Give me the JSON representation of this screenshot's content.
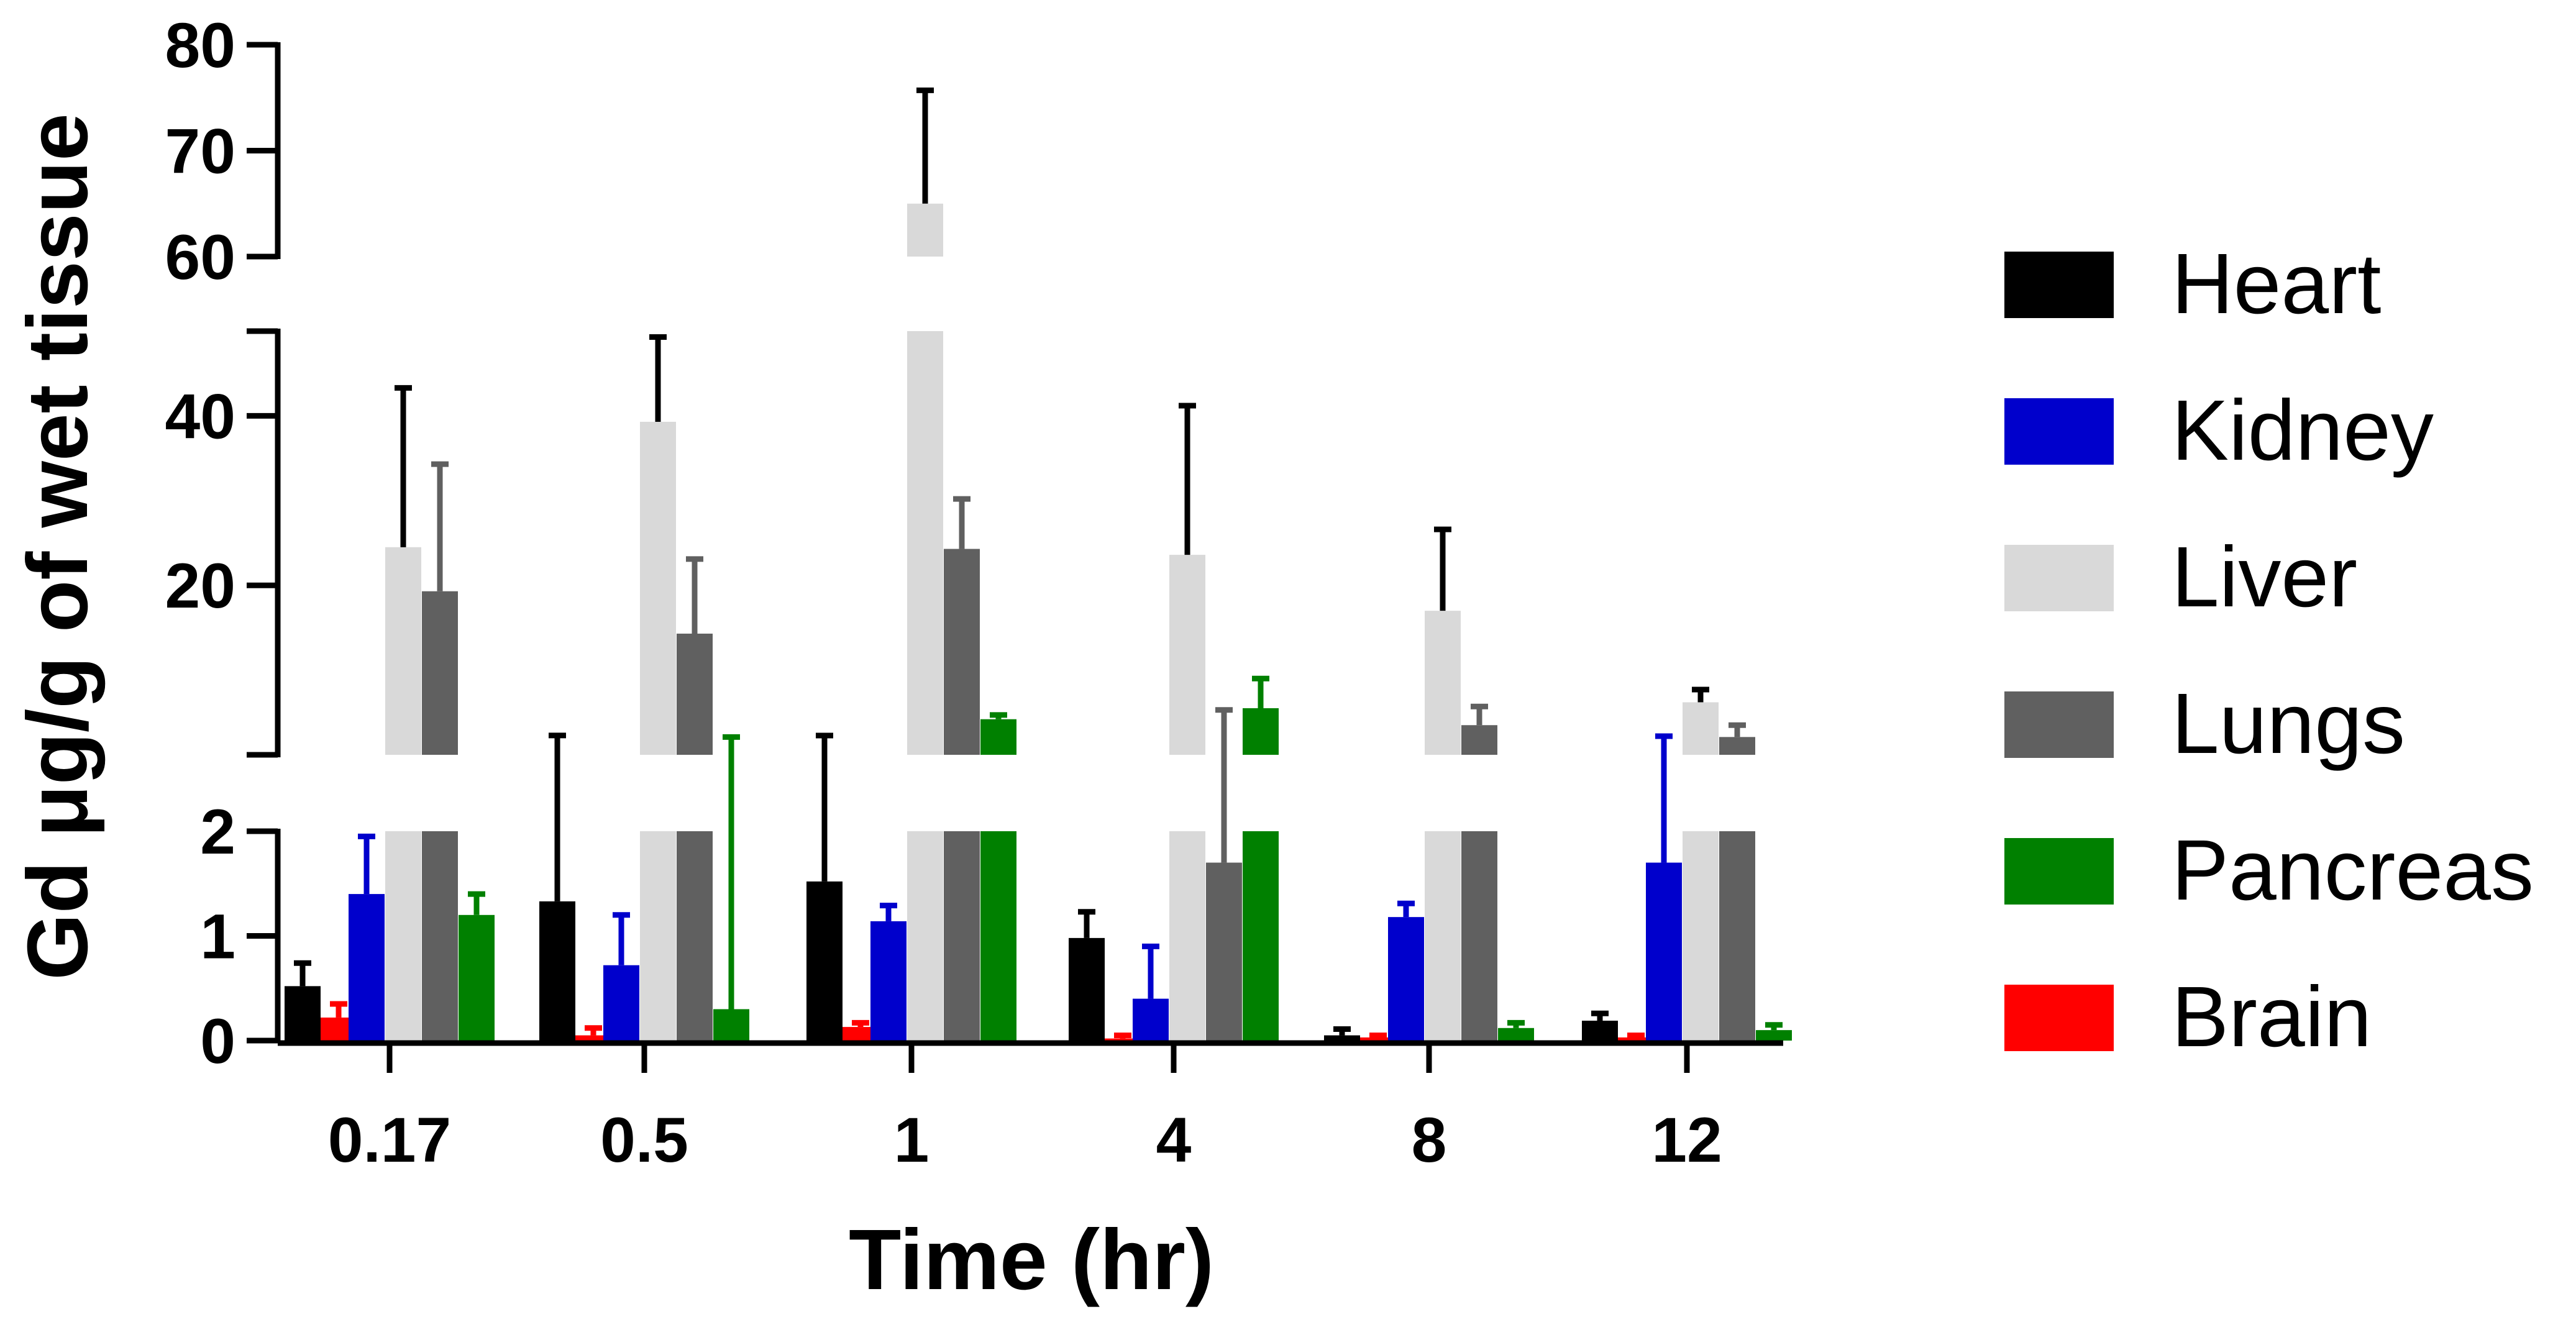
{
  "chart_data": {
    "type": "bar",
    "title": "",
    "xlabel": "Time (hr)",
    "ylabel": "Gd μg/g of wet tissue",
    "categories": [
      "0.17",
      "0.5",
      "1",
      "4",
      "8",
      "12"
    ],
    "y_axis_segments": [
      {
        "range": [
          0,
          2
        ],
        "ticks": [
          "0",
          "1",
          "2"
        ]
      },
      {
        "range": [
          0,
          50
        ],
        "ticks": [
          "20",
          "40"
        ]
      },
      {
        "range": [
          60,
          80
        ],
        "ticks": [
          "60",
          "70",
          "80"
        ]
      }
    ],
    "series": [
      {
        "name": "Heart",
        "color": "#000000",
        "values": [
          0.52,
          1.33,
          1.52,
          0.98,
          0.05,
          0.19
        ],
        "errors": [
          0.22,
          0.95,
          0.75,
          0.25,
          0.06,
          0.07
        ]
      },
      {
        "name": "Kidney",
        "color": "#0000cc",
        "values": [
          1.4,
          0.72,
          1.14,
          0.4,
          1.18,
          1.7
        ],
        "errors": [
          0.55,
          0.48,
          0.15,
          0.5,
          0.13,
          0.5
        ]
      },
      {
        "name": "Liver",
        "color": "#d9d9d9",
        "values": [
          24.5,
          39.3,
          65,
          23.6,
          17,
          6.2
        ],
        "errors": [
          18.8,
          10,
          10.7,
          17.6,
          9.6,
          1.5
        ]
      },
      {
        "name": "Lungs",
        "color": "#606060",
        "values": [
          19.3,
          14.3,
          24.3,
          1.7,
          3.5,
          2.1
        ],
        "errors": [
          15,
          8.8,
          5.9,
          3.6,
          2.2,
          1.4
        ]
      },
      {
        "name": "Pancreas",
        "color": "#008000",
        "values": [
          1.2,
          0.3,
          4.2,
          5.5,
          0.12,
          0.1
        ],
        "errors": [
          0.2,
          1.8,
          0.5,
          3.5,
          0.05,
          0.05
        ]
      },
      {
        "name": "Brain",
        "color": "#ff0000",
        "values": [
          0.22,
          0.05,
          0.13,
          0.02,
          0.03,
          0.03
        ],
        "errors": [
          0.13,
          0.07,
          0.04,
          0.03,
          0.02,
          0.02
        ]
      }
    ],
    "legend": {
      "position": "right"
    },
    "grid": false
  }
}
